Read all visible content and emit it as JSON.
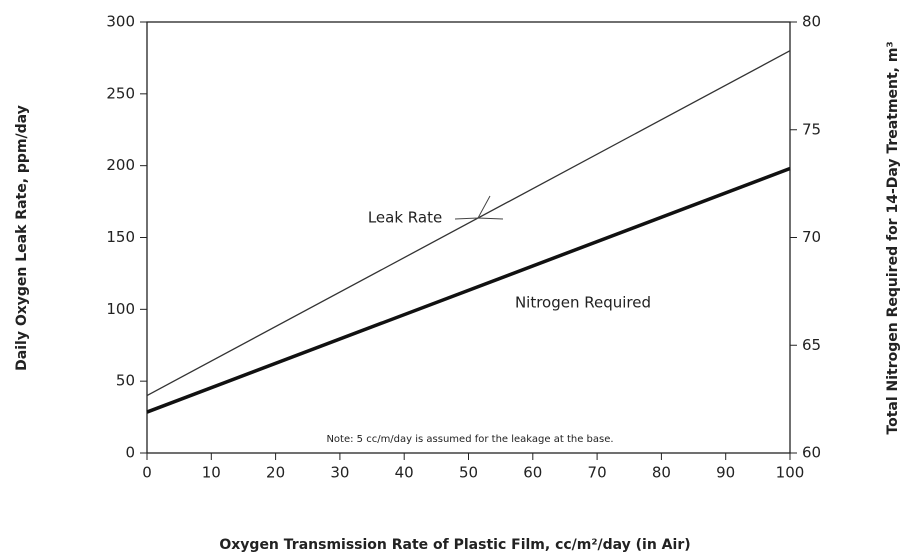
{
  "chart_data": {
    "type": "line",
    "xlabel": "Oxygen Transmission Rate of Plastic Film, cc/m²/day (in Air)",
    "ylabel": "Daily Oxygen Leak Rate, ppm/day",
    "y2label": "Total Nitrogen Required for 14-Day Treatment, m³",
    "x": [
      0,
      100
    ],
    "series": [
      {
        "name": "Leak Rate",
        "color": "#333333",
        "values": [
          40,
          280
        ]
      },
      {
        "name": "Nitrogen Required",
        "color": "#111111",
        "values": [
          61.9,
          73.2
        ],
        "axis": "y2"
      }
    ],
    "annotations": [
      "Note: 5 cc/m/day is assumed for the leakage at the base."
    ],
    "xlim": [
      0,
      100
    ],
    "xticks": [
      0,
      10,
      20,
      30,
      40,
      50,
      60,
      70,
      80,
      90,
      100
    ],
    "ylim": [
      0,
      300
    ],
    "yticks": [
      0,
      50,
      100,
      150,
      200,
      250,
      300
    ],
    "y2lim": [
      60,
      80
    ],
    "y2ticks": [
      60,
      65,
      70,
      75,
      80
    ],
    "grid": false
  }
}
